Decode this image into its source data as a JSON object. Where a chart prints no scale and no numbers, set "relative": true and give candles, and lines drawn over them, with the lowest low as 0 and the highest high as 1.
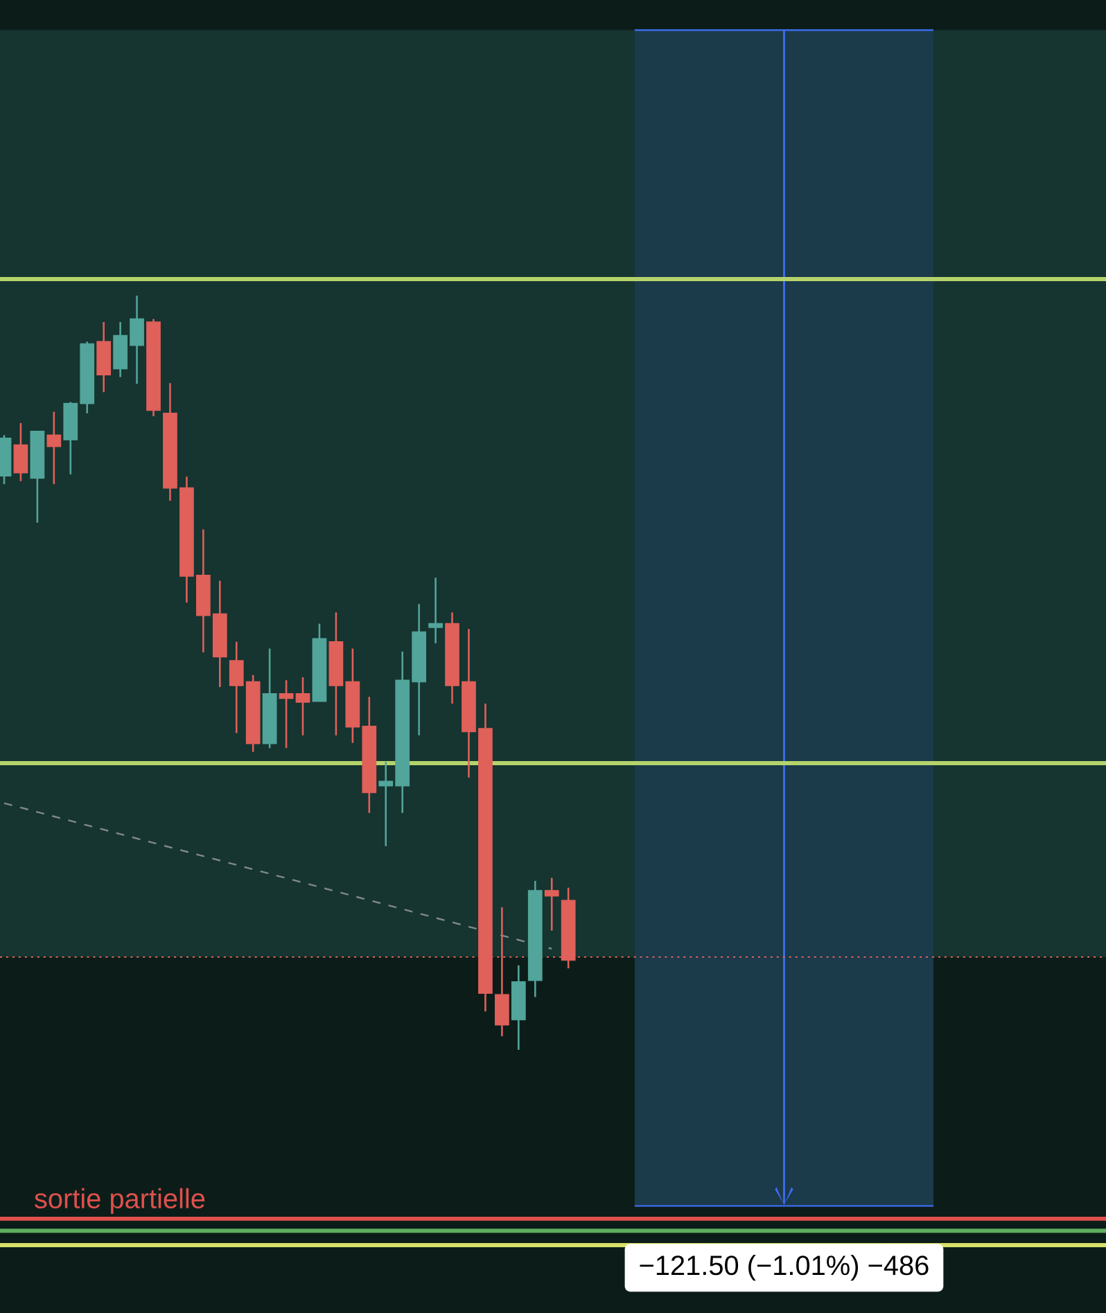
{
  "chart_data": {
    "type": "candlestick",
    "relative": true,
    "categories": [
      null,
      null,
      null,
      null,
      null,
      null,
      null,
      null,
      null,
      null,
      null,
      null,
      null,
      null,
      null,
      null,
      null,
      null,
      null,
      null,
      null,
      null,
      null,
      null,
      null,
      null,
      null,
      null,
      null,
      null,
      null,
      null,
      null,
      null,
      null,
      null,
      null,
      null,
      null,
      null,
      null,
      null,
      null,
      null,
      null,
      null,
      null,
      null,
      null,
      null,
      null,
      null,
      null,
      null,
      null,
      null,
      null,
      null,
      null,
      null,
      null,
      null,
      null,
      null,
      null,
      null,
      null
    ],
    "ohlc": [
      [
        0.761,
        0.815,
        0.75,
        0.811
      ],
      [
        0.802,
        0.831,
        0.754,
        0.765
      ],
      [
        0.758,
        0.82,
        0.699,
        0.82
      ],
      [
        0.815,
        0.846,
        0.75,
        0.8
      ],
      [
        0.809,
        0.859,
        0.763,
        0.857
      ],
      [
        0.857,
        0.939,
        0.844,
        0.936
      ],
      [
        0.939,
        0.965,
        0.872,
        0.895
      ],
      [
        0.903,
        0.965,
        0.892,
        0.947
      ],
      [
        0.934,
        1,
        0.883,
        0.969
      ],
      [
        0.965,
        0.969,
        0.84,
        0.848
      ],
      [
        0.844,
        0.884,
        0.728,
        0.745
      ],
      [
        0.745,
        0.76,
        0.593,
        0.628
      ],
      [
        0.629,
        0.69,
        0.527,
        0.576
      ],
      [
        0.578,
        0.622,
        0.481,
        0.521
      ],
      [
        0.516,
        0.541,
        0.42,
        0.483
      ],
      [
        0.488,
        0.497,
        0.395,
        0.406
      ],
      [
        0.406,
        0.532,
        0.4,
        0.472
      ],
      [
        0.472,
        0.49,
        0.4,
        0.466
      ],
      [
        0.472,
        0.494,
        0.417,
        0.461
      ],
      [
        0.462,
        0.565,
        0.462,
        0.545
      ],
      [
        0.541,
        0.58,
        0.417,
        0.483
      ],
      [
        0.488,
        0.532,
        0.407,
        0.428
      ],
      [
        0.429,
        0.468,
        0.314,
        0.341
      ],
      [
        0.35,
        0.382,
        0.27,
        0.356
      ],
      [
        0.35,
        0.528,
        0.314,
        0.49
      ],
      [
        0.488,
        0.591,
        0.417,
        0.554
      ],
      [
        0.56,
        0.626,
        0.539,
        0.565
      ],
      [
        0.565,
        0.58,
        0.459,
        0.483
      ],
      [
        0.488,
        0.558,
        0.361,
        0.422
      ],
      [
        0.426,
        0.459,
        0.051,
        0.075
      ],
      [
        0.073,
        0.189,
        0.018,
        0.033
      ],
      [
        0.04,
        0.112,
        0,
        0.09
      ],
      [
        0.092,
        0.224,
        0.07,
        0.211
      ],
      [
        0.211,
        0.228,
        0.158,
        0.204
      ],
      [
        0.198,
        0.215,
        0.108,
        0.119
      ],
      null,
      null,
      null,
      null,
      null,
      null,
      null,
      null,
      null,
      null,
      null,
      null,
      null,
      null,
      null,
      null,
      null,
      null,
      null,
      null,
      null,
      null,
      null,
      null,
      null,
      null,
      null,
      null,
      null,
      null,
      null,
      null
    ],
    "colors": [
      "#52a59a",
      "#e0605a",
      "#52a59a",
      "#e0605a",
      "#52a59a",
      "#52a59a",
      "#e0605a",
      "#52a59a",
      "#52a59a",
      "#e0605a",
      "#e0605a",
      "#e0605a",
      "#e0605a",
      "#e0605a",
      "#e0605a",
      "#e0605a",
      "#52a59a",
      "#e0605a",
      "#e0605a",
      "#52a59a",
      "#e0605a",
      "#e0605a",
      "#e0605a",
      "#52a59a",
      "#52a59a",
      "#52a59a",
      "#52a59a",
      "#e0605a",
      "#e0605a",
      "#e0605a",
      "#e0605a",
      "#52a59a",
      "#52a59a",
      "#e0605a",
      "#e0605a",
      null,
      null,
      null,
      null,
      null,
      null,
      null,
      null,
      null,
      null,
      null,
      null,
      null,
      null,
      null,
      null,
      null,
      null,
      null,
      null,
      null,
      null,
      null,
      null,
      null,
      null,
      null,
      null,
      null,
      null,
      null,
      null
    ],
    "series": [
      {
        "type": "line",
        "values": [
          0.327,
          null,
          null,
          null,
          null,
          null,
          null,
          null,
          null,
          null,
          null,
          null,
          null,
          null,
          null,
          null,
          null,
          null,
          null,
          null,
          null,
          null,
          null,
          null,
          null,
          null,
          null,
          null,
          null,
          null,
          null,
          null,
          null,
          0.134,
          null,
          null,
          null,
          null,
          null,
          null,
          null,
          null,
          null,
          null,
          null,
          null,
          null,
          null,
          null,
          null,
          null,
          null,
          null,
          null,
          null,
          null,
          null,
          null,
          null,
          null,
          null,
          null,
          null,
          null,
          null,
          null,
          null
        ],
        "color": "#7f8a88",
        "line_style": "dashed"
      }
    ],
    "bands": [
      {
        "axis": "y",
        "from": 0.123,
        "to": 1.352,
        "color": "#163430"
      }
    ],
    "ref_lines": [
      {
        "axis": "y",
        "value": 1.022,
        "color": "#b5d36b"
      },
      {
        "axis": "y",
        "value": 0.38,
        "color": "#b5d36b"
      },
      {
        "axis": "y",
        "value": 0.123,
        "color": "#e0605a",
        "line_style": "dotted"
      },
      {
        "axis": "y",
        "value": -0.224,
        "color": "#e0504c",
        "label": "sortie partielle"
      },
      {
        "axis": "y",
        "value": -0.24,
        "color": "#5fae5f"
      },
      {
        "axis": "y",
        "value": -0.259,
        "color": "#d8e06a"
      }
    ],
    "annotations": [
      "−121.50 (−1.01%) −486"
    ]
  }
}
